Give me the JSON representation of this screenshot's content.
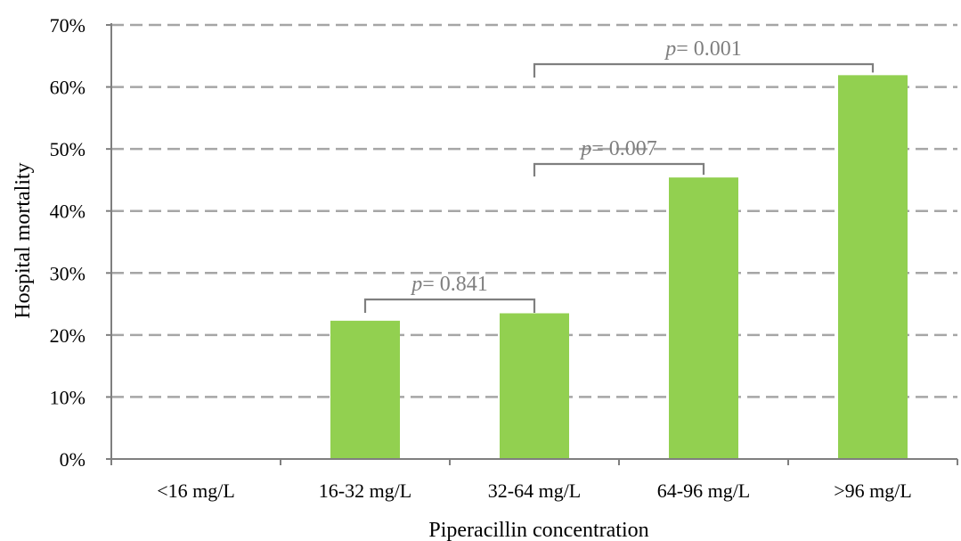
{
  "chart_data": {
    "type": "bar",
    "categories": [
      "<16 mg/L",
      "16-32 mg/L",
      "32-64 mg/L",
      "64-96 mg/L",
      ">96 mg/L"
    ],
    "values": [
      0,
      22.3,
      23.5,
      45.4,
      61.9
    ],
    "xlabel": "Piperacillin concentration",
    "ylabel": "Hospital mortality",
    "ylim": [
      0,
      70
    ],
    "yticks": [
      0,
      10,
      20,
      30,
      40,
      50,
      60,
      70
    ],
    "ytick_suffix": "%",
    "grid": true,
    "bar_color": "#92d050",
    "annotations": [
      {
        "from": 1,
        "to": 2,
        "p_symbol": "p",
        "text": "= 0.841"
      },
      {
        "from": 2,
        "to": 3,
        "p_symbol": "p",
        "text": "= 0.007"
      },
      {
        "from": 2,
        "to": 4,
        "p_symbol": "p",
        "text": "= 0.001"
      }
    ]
  }
}
